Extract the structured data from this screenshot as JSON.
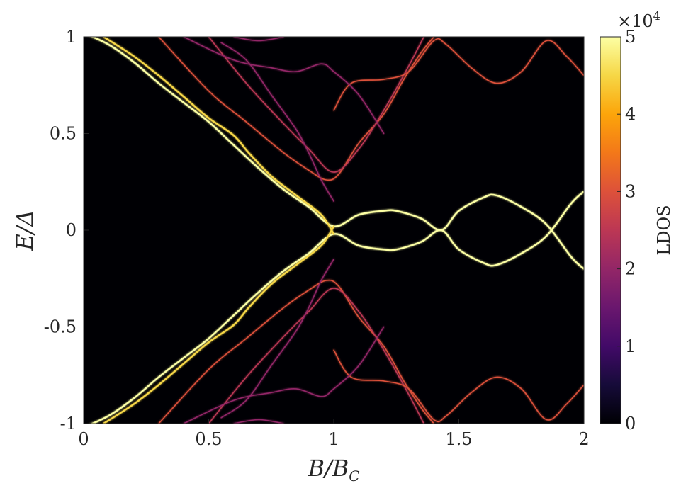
{
  "chart_data": {
    "type": "heatmap",
    "title": "",
    "xlabel": "B/B_C",
    "ylabel": "E/Δ",
    "xlim": [
      0,
      2
    ],
    "ylim": [
      -1,
      1
    ],
    "x_ticks": [
      "0",
      "0.5",
      "1",
      "1.5",
      "2"
    ],
    "y_ticks": [
      "-1",
      "-0.5",
      "0",
      "0.5",
      "1"
    ],
    "colorbar": {
      "label": "LDOS",
      "exponent_label": "×10",
      "exponent_power": "4",
      "range": [
        0,
        50000
      ],
      "ticks": [
        "0",
        "1",
        "2",
        "3",
        "4",
        "5"
      ],
      "colormap": "inferno"
    },
    "background_color": "#000004",
    "series": [
      {
        "intensity": 1.0,
        "points": [
          [
            0.0,
            1.02
          ],
          [
            0.1,
            0.96
          ],
          [
            0.2,
            0.87
          ],
          [
            0.3,
            0.76
          ],
          [
            0.4,
            0.66
          ],
          [
            0.5,
            0.56
          ],
          [
            0.6,
            0.44
          ],
          [
            0.7,
            0.32
          ],
          [
            0.8,
            0.21
          ],
          [
            0.9,
            0.12
          ],
          [
            1.0,
            0.02
          ],
          [
            1.1,
            0.08
          ],
          [
            1.2,
            0.1
          ],
          [
            1.25,
            0.1
          ],
          [
            1.35,
            0.06
          ],
          [
            1.43,
            0.0
          ],
          [
            1.5,
            0.1
          ],
          [
            1.6,
            0.17
          ],
          [
            1.65,
            0.18
          ],
          [
            1.75,
            0.12
          ],
          [
            1.85,
            0.03
          ],
          [
            1.95,
            -0.14
          ],
          [
            2.0,
            -0.2
          ]
        ]
      },
      {
        "intensity": 1.0,
        "points": [
          [
            0.0,
            -1.02
          ],
          [
            0.1,
            -0.96
          ],
          [
            0.2,
            -0.87
          ],
          [
            0.3,
            -0.76
          ],
          [
            0.4,
            -0.66
          ],
          [
            0.5,
            -0.56
          ],
          [
            0.6,
            -0.44
          ],
          [
            0.7,
            -0.32
          ],
          [
            0.8,
            -0.21
          ],
          [
            0.9,
            -0.12
          ],
          [
            1.0,
            -0.02
          ],
          [
            1.1,
            -0.08
          ],
          [
            1.2,
            -0.1
          ],
          [
            1.25,
            -0.1
          ],
          [
            1.35,
            -0.06
          ],
          [
            1.43,
            0.0
          ],
          [
            1.5,
            -0.1
          ],
          [
            1.6,
            -0.17
          ],
          [
            1.65,
            -0.18
          ],
          [
            1.75,
            -0.12
          ],
          [
            1.85,
            -0.03
          ],
          [
            1.95,
            0.14
          ],
          [
            2.0,
            0.2
          ]
        ]
      },
      {
        "intensity": 0.85,
        "points": [
          [
            0.08,
            1.0
          ],
          [
            0.2,
            0.9
          ],
          [
            0.3,
            0.8
          ],
          [
            0.4,
            0.69
          ],
          [
            0.5,
            0.58
          ],
          [
            0.6,
            0.49
          ],
          [
            0.66,
            0.4
          ],
          [
            0.75,
            0.28
          ],
          [
            0.85,
            0.18
          ],
          [
            0.95,
            0.08
          ],
          [
            1.0,
            -0.02
          ]
        ]
      },
      {
        "intensity": 0.85,
        "points": [
          [
            0.08,
            -1.0
          ],
          [
            0.2,
            -0.9
          ],
          [
            0.3,
            -0.8
          ],
          [
            0.4,
            -0.69
          ],
          [
            0.5,
            -0.58
          ],
          [
            0.6,
            -0.49
          ],
          [
            0.66,
            -0.4
          ],
          [
            0.75,
            -0.28
          ],
          [
            0.85,
            -0.18
          ],
          [
            0.95,
            -0.08
          ],
          [
            1.0,
            0.02
          ]
        ]
      },
      {
        "intensity": 0.55,
        "points": [
          [
            0.3,
            1.0
          ],
          [
            0.5,
            0.72
          ],
          [
            0.65,
            0.56
          ],
          [
            0.8,
            0.4
          ],
          [
            0.9,
            0.31
          ],
          [
            0.97,
            0.26
          ],
          [
            1.02,
            0.29
          ],
          [
            1.1,
            0.45
          ],
          [
            1.2,
            0.6
          ],
          [
            1.28,
            0.78
          ],
          [
            1.35,
            0.92
          ],
          [
            1.4,
            1.0
          ]
        ]
      },
      {
        "intensity": 0.55,
        "points": [
          [
            0.3,
            -1.0
          ],
          [
            0.5,
            -0.72
          ],
          [
            0.65,
            -0.56
          ],
          [
            0.8,
            -0.4
          ],
          [
            0.9,
            -0.31
          ],
          [
            0.97,
            -0.26
          ],
          [
            1.02,
            -0.29
          ],
          [
            1.1,
            -0.45
          ],
          [
            1.2,
            -0.6
          ],
          [
            1.28,
            -0.78
          ],
          [
            1.35,
            -0.92
          ],
          [
            1.4,
            -1.0
          ]
        ]
      },
      {
        "intensity": 0.45,
        "points": [
          [
            0.5,
            1.0
          ],
          [
            0.65,
            0.76
          ],
          [
            0.8,
            0.55
          ],
          [
            0.9,
            0.42
          ],
          [
            1.0,
            0.3
          ],
          [
            1.1,
            0.42
          ],
          [
            1.2,
            0.62
          ],
          [
            1.3,
            0.85
          ],
          [
            1.36,
            1.0
          ]
        ]
      },
      {
        "intensity": 0.45,
        "points": [
          [
            0.5,
            -1.0
          ],
          [
            0.65,
            -0.76
          ],
          [
            0.8,
            -0.55
          ],
          [
            0.9,
            -0.42
          ],
          [
            1.0,
            -0.3
          ],
          [
            1.1,
            -0.42
          ],
          [
            1.2,
            -0.62
          ],
          [
            1.3,
            -0.85
          ],
          [
            1.36,
            -1.0
          ]
        ]
      },
      {
        "intensity": 0.6,
        "points": [
          [
            1.0,
            0.62
          ],
          [
            1.07,
            0.76
          ],
          [
            1.2,
            0.78
          ],
          [
            1.3,
            0.82
          ],
          [
            1.4,
            0.98
          ],
          [
            1.45,
            0.96
          ],
          [
            1.55,
            0.84
          ],
          [
            1.65,
            0.76
          ],
          [
            1.75,
            0.82
          ],
          [
            1.85,
            0.98
          ],
          [
            1.93,
            0.9
          ],
          [
            2.0,
            0.8
          ]
        ]
      },
      {
        "intensity": 0.6,
        "points": [
          [
            1.0,
            -0.62
          ],
          [
            1.07,
            -0.76
          ],
          [
            1.2,
            -0.78
          ],
          [
            1.3,
            -0.82
          ],
          [
            1.4,
            -0.98
          ],
          [
            1.45,
            -0.96
          ],
          [
            1.55,
            -0.84
          ],
          [
            1.65,
            -0.76
          ],
          [
            1.75,
            -0.82
          ],
          [
            1.85,
            -0.98
          ],
          [
            1.93,
            -0.9
          ],
          [
            2.0,
            -0.8
          ]
        ]
      },
      {
        "intensity": 0.4,
        "points": [
          [
            0.4,
            1.0
          ],
          [
            0.6,
            0.88
          ],
          [
            0.75,
            0.84
          ],
          [
            0.85,
            0.82
          ],
          [
            0.95,
            0.86
          ],
          [
            1.0,
            0.82
          ],
          [
            1.1,
            0.7
          ],
          [
            1.2,
            0.5
          ]
        ]
      },
      {
        "intensity": 0.4,
        "points": [
          [
            0.4,
            -1.0
          ],
          [
            0.6,
            -0.88
          ],
          [
            0.75,
            -0.84
          ],
          [
            0.85,
            -0.82
          ],
          [
            0.95,
            -0.86
          ],
          [
            1.0,
            -0.82
          ],
          [
            1.1,
            -0.7
          ],
          [
            1.2,
            -0.5
          ]
        ]
      },
      {
        "intensity": 0.35,
        "points": [
          [
            0.6,
            1.0
          ],
          [
            0.7,
            0.98
          ],
          [
            0.8,
            1.0
          ]
        ]
      },
      {
        "intensity": 0.35,
        "points": [
          [
            0.6,
            -1.0
          ],
          [
            0.7,
            -0.98
          ],
          [
            0.8,
            -1.0
          ]
        ]
      },
      {
        "intensity": 0.35,
        "points": [
          [
            0.55,
            0.97
          ],
          [
            0.65,
            0.88
          ],
          [
            0.75,
            0.7
          ],
          [
            0.85,
            0.52
          ],
          [
            0.9,
            0.4
          ],
          [
            0.95,
            0.26
          ],
          [
            1.0,
            0.15
          ]
        ]
      },
      {
        "intensity": 0.35,
        "points": [
          [
            0.55,
            -0.97
          ],
          [
            0.65,
            -0.88
          ],
          [
            0.75,
            -0.7
          ],
          [
            0.85,
            -0.52
          ],
          [
            0.9,
            -0.4
          ],
          [
            0.95,
            -0.26
          ],
          [
            1.0,
            -0.15
          ]
        ]
      }
    ]
  }
}
